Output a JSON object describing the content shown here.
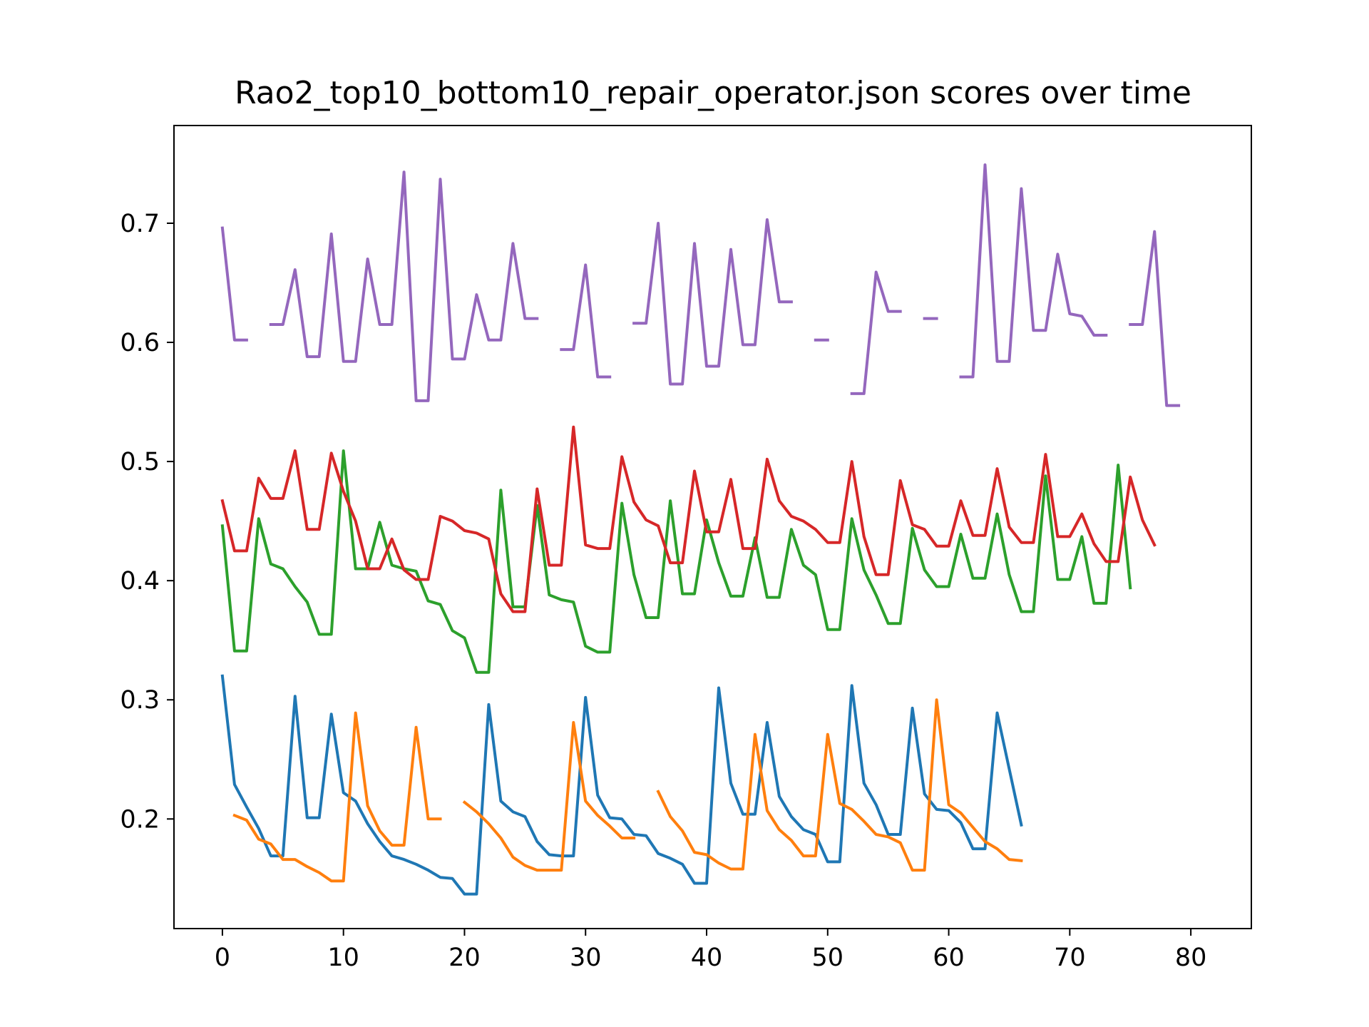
{
  "chart_data": {
    "type": "line",
    "title": "Rao2_top10_bottom10_repair_operator.json scores over time",
    "xlabel": "",
    "ylabel": "",
    "xlim": [
      -4,
      85
    ],
    "ylim": [
      0.108,
      0.782
    ],
    "xticks": [
      0,
      10,
      20,
      30,
      40,
      50,
      60,
      70,
      80
    ],
    "xtick_labels": [
      "0",
      "10",
      "20",
      "30",
      "40",
      "50",
      "60",
      "70",
      "80"
    ],
    "yticks": [
      0.2,
      0.3,
      0.4,
      0.5,
      0.6,
      0.7
    ],
    "ytick_labels": [
      "0.2",
      "0.3",
      "0.4",
      "0.5",
      "0.6",
      "0.7"
    ],
    "grid": false,
    "legend": "none",
    "series": [
      {
        "color": "#1f77b4",
        "x": [
          0,
          1,
          2,
          3,
          4,
          5,
          6,
          7,
          8,
          9,
          10,
          11,
          12,
          13,
          14,
          15,
          16,
          17,
          18,
          19,
          20,
          21,
          22,
          23,
          24,
          25,
          26,
          27,
          28,
          29,
          30,
          31,
          32,
          33,
          34,
          35,
          36,
          37,
          38,
          39,
          40,
          41,
          42,
          43,
          44,
          45,
          46,
          47,
          48,
          49,
          50,
          51,
          52,
          53,
          54,
          55,
          56,
          57,
          58,
          59,
          60,
          61,
          62,
          63,
          64,
          65,
          66
        ],
        "y": [
          0.32,
          0.229,
          0.21,
          0.192,
          0.169,
          0.169,
          0.303,
          0.201,
          0.201,
          0.288,
          0.222,
          0.215,
          0.196,
          0.181,
          0.169,
          0.166,
          0.162,
          0.157,
          0.151,
          0.15,
          0.137,
          0.137,
          0.296,
          0.215,
          0.206,
          0.202,
          0.181,
          0.17,
          0.169,
          0.169,
          0.302,
          0.22,
          0.201,
          0.2,
          0.187,
          0.186,
          0.171,
          0.167,
          0.162,
          0.146,
          0.146,
          0.31,
          0.23,
          0.204,
          0.204,
          0.281,
          0.219,
          0.202,
          0.191,
          0.187,
          0.164,
          0.164,
          0.312,
          0.23,
          0.212,
          0.187,
          0.187,
          0.293,
          0.221,
          0.208,
          0.207,
          0.197,
          0.175,
          0.175,
          0.289,
          0.242,
          0.195
        ]
      },
      {
        "color": "#ff7f0e",
        "x": [
          1,
          2,
          3,
          4,
          5,
          6,
          7,
          8,
          9,
          10,
          11,
          12,
          13,
          14,
          15,
          16,
          17,
          18,
          null,
          20,
          21,
          22,
          23,
          24,
          25,
          26,
          27,
          28,
          29,
          30,
          31,
          32,
          33,
          34,
          null,
          36,
          37,
          38,
          39,
          40,
          41,
          42,
          43,
          44,
          45,
          46,
          47,
          48,
          49,
          50,
          51,
          52,
          53,
          54,
          55,
          56,
          57,
          58,
          59,
          60,
          61,
          62,
          63,
          64,
          65,
          66
        ],
        "y": [
          0.203,
          0.199,
          0.183,
          0.179,
          0.166,
          0.166,
          0.16,
          0.155,
          0.148,
          0.148,
          0.289,
          0.211,
          0.19,
          0.178,
          0.178,
          0.277,
          0.2,
          0.2,
          null,
          0.214,
          0.206,
          0.196,
          0.184,
          0.168,
          0.161,
          0.157,
          0.157,
          0.157,
          0.281,
          0.215,
          0.203,
          0.194,
          0.184,
          0.184,
          null,
          0.223,
          0.202,
          0.19,
          0.172,
          0.17,
          0.163,
          0.158,
          0.158,
          0.271,
          0.207,
          0.191,
          0.182,
          0.169,
          0.169,
          0.271,
          0.213,
          0.208,
          0.198,
          0.187,
          0.185,
          0.18,
          0.157,
          0.157,
          0.3,
          0.212,
          0.205,
          0.193,
          0.181,
          0.175,
          0.166,
          0.165
        ]
      },
      {
        "color": "#2ca02c",
        "x": [
          0,
          1,
          2,
          3,
          4,
          5,
          6,
          7,
          8,
          9,
          10,
          11,
          12,
          13,
          14,
          15,
          16,
          17,
          18,
          19,
          20,
          21,
          22,
          23,
          24,
          25,
          26,
          27,
          28,
          29,
          30,
          31,
          32,
          33,
          34,
          35,
          36,
          37,
          38,
          39,
          40,
          41,
          42,
          43,
          44,
          45,
          46,
          47,
          48,
          49,
          50,
          51,
          52,
          53,
          54,
          55,
          56,
          57,
          58,
          59,
          60,
          61,
          62,
          63,
          64,
          65,
          66,
          67,
          68,
          69,
          70,
          71,
          72,
          73,
          74,
          75
        ],
        "y": [
          0.446,
          0.341,
          0.341,
          0.452,
          0.414,
          0.41,
          0.395,
          0.382,
          0.355,
          0.355,
          0.509,
          0.41,
          0.41,
          0.449,
          0.413,
          0.41,
          0.408,
          0.383,
          0.38,
          0.358,
          0.352,
          0.323,
          0.323,
          0.476,
          0.378,
          0.378,
          0.463,
          0.388,
          0.384,
          0.382,
          0.345,
          0.34,
          0.34,
          0.465,
          0.405,
          0.369,
          0.369,
          0.467,
          0.389,
          0.389,
          0.451,
          0.415,
          0.387,
          0.387,
          0.436,
          0.386,
          0.386,
          0.443,
          0.413,
          0.405,
          0.359,
          0.359,
          0.452,
          0.409,
          0.388,
          0.364,
          0.364,
          0.444,
          0.409,
          0.395,
          0.395,
          0.439,
          0.402,
          0.402,
          0.456,
          0.405,
          0.374,
          0.374,
          0.488,
          0.401,
          0.401,
          0.437,
          0.381,
          0.381,
          0.497,
          0.394
        ]
      },
      {
        "color": "#d62728",
        "x": [
          0,
          1,
          2,
          3,
          4,
          5,
          6,
          7,
          8,
          9,
          10,
          11,
          12,
          13,
          14,
          15,
          16,
          17,
          18,
          19,
          20,
          21,
          22,
          23,
          24,
          25,
          26,
          27,
          28,
          29,
          30,
          31,
          32,
          33,
          34,
          35,
          36,
          37,
          38,
          39,
          40,
          41,
          42,
          43,
          44,
          45,
          46,
          47,
          48,
          49,
          50,
          51,
          52,
          53,
          54,
          55,
          56,
          57,
          58,
          59,
          60,
          61,
          62,
          63,
          64,
          65,
          66,
          67,
          68,
          69,
          70,
          71,
          72,
          73,
          74,
          75,
          76,
          77
        ],
        "y": [
          0.467,
          0.425,
          0.425,
          0.486,
          0.469,
          0.469,
          0.509,
          0.443,
          0.443,
          0.507,
          0.475,
          0.45,
          0.41,
          0.41,
          0.435,
          0.409,
          0.401,
          0.401,
          0.454,
          0.45,
          0.442,
          0.44,
          0.435,
          0.389,
          0.374,
          0.374,
          0.477,
          0.413,
          0.413,
          0.529,
          0.43,
          0.427,
          0.427,
          0.504,
          0.466,
          0.451,
          0.446,
          0.415,
          0.415,
          0.492,
          0.441,
          0.441,
          0.485,
          0.427,
          0.427,
          0.502,
          0.467,
          0.454,
          0.45,
          0.443,
          0.432,
          0.432,
          0.5,
          0.437,
          0.405,
          0.405,
          0.484,
          0.447,
          0.443,
          0.429,
          0.429,
          0.467,
          0.438,
          0.438,
          0.494,
          0.445,
          0.432,
          0.432,
          0.506,
          0.437,
          0.437,
          0.456,
          0.431,
          0.416,
          0.416,
          0.487,
          0.451,
          0.43
        ]
      },
      {
        "color": "#9467bd",
        "x": [
          0,
          1,
          2,
          null,
          4,
          5,
          6,
          7,
          8,
          9,
          10,
          11,
          12,
          13,
          14,
          15,
          16,
          17,
          18,
          19,
          20,
          21,
          22,
          23,
          24,
          25,
          26,
          null,
          28,
          29,
          30,
          31,
          32,
          null,
          34,
          35,
          36,
          37,
          38,
          39,
          40,
          41,
          42,
          43,
          44,
          45,
          46,
          47,
          null,
          49,
          50,
          null,
          52,
          53,
          54,
          55,
          56,
          null,
          58,
          59,
          null,
          61,
          62,
          63,
          64,
          65,
          66,
          67,
          68,
          69,
          70,
          71,
          72,
          73,
          null,
          75,
          76,
          77,
          78,
          79
        ],
        "y": [
          0.696,
          0.602,
          0.602,
          null,
          0.615,
          0.615,
          0.661,
          0.588,
          0.588,
          0.691,
          0.584,
          0.584,
          0.67,
          0.615,
          0.615,
          0.743,
          0.551,
          0.551,
          0.737,
          0.586,
          0.586,
          0.64,
          0.602,
          0.602,
          0.683,
          0.62,
          0.62,
          null,
          0.594,
          0.594,
          0.665,
          0.571,
          0.571,
          null,
          0.616,
          0.616,
          0.7,
          0.565,
          0.565,
          0.683,
          0.58,
          0.58,
          0.678,
          0.598,
          0.598,
          0.703,
          0.634,
          0.634,
          null,
          0.602,
          0.602,
          null,
          0.557,
          0.557,
          0.659,
          0.626,
          0.626,
          null,
          0.62,
          0.62,
          null,
          0.571,
          0.571,
          0.749,
          0.584,
          0.584,
          0.729,
          0.61,
          0.61,
          0.674,
          0.624,
          0.622,
          0.606,
          0.606,
          null,
          0.615,
          0.615,
          0.693,
          0.547,
          0.547
        ]
      }
    ]
  }
}
